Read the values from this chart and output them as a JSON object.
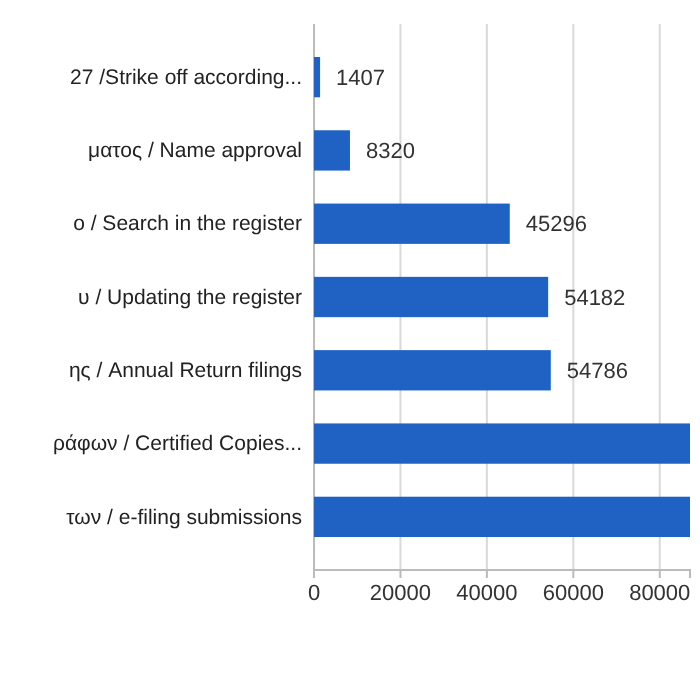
{
  "chart_data": {
    "type": "bar",
    "orientation": "horizontal",
    "categories": [
      "27 /Strike off according...",
      "ματος / Name approval",
      "ο / Search in the register",
      "υ / Updating the register",
      "ης / Annual Return filings",
      "ράφων / Certified Copies...",
      "των / e-filing submissions"
    ],
    "values": [
      1407,
      8320,
      45296,
      54182,
      54786,
      87000,
      87000
    ],
    "value_labels": [
      "1407",
      "8320",
      "45296",
      "54182",
      "54786",
      null,
      null
    ],
    "color": "#1f62c4",
    "xlim": [
      0,
      87000
    ],
    "xticks": [
      0,
      20000,
      40000,
      60000,
      80000
    ],
    "grid": "x"
  }
}
